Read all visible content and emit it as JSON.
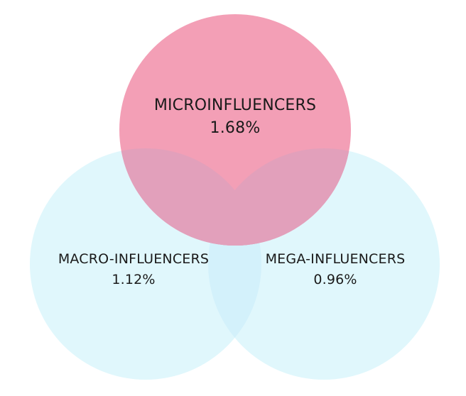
{
  "colors": {
    "background": "#ffffff",
    "micro_circle": "#f39fb6",
    "macro_circle": "#e0f7fc",
    "mega_circle": "#e0f7fc",
    "micro_overlap": "#e2a0bb",
    "bottom_overlap": "#d3f1fb",
    "text": "#1a1a1a"
  },
  "sets": [
    {
      "id": "micro",
      "name": "MICROINFLUENCERS",
      "value": "1.68%"
    },
    {
      "id": "macro",
      "name": "MACRO-INFLUENCERS",
      "value": "1.12%"
    },
    {
      "id": "mega",
      "name": "MEGA-INFLUENCERS",
      "value": "0.96%"
    }
  ]
}
